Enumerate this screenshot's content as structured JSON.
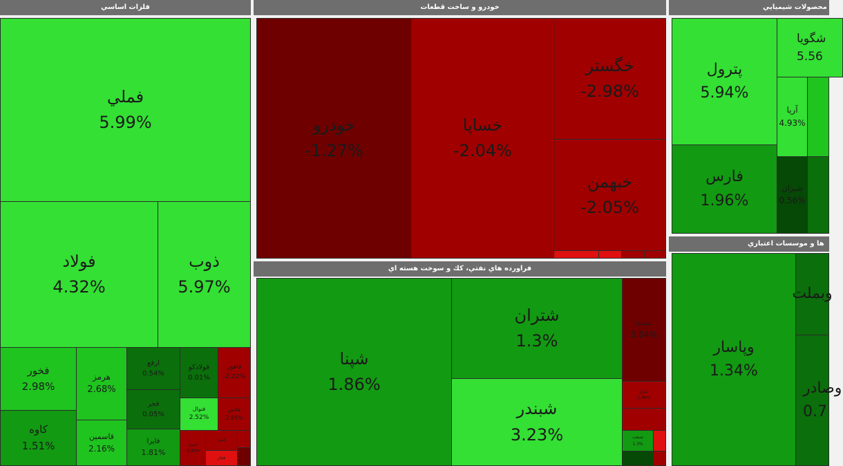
{
  "colors": {
    "bright_green": "#33e033",
    "green": "#1fc41f",
    "mid_green": "#129a12",
    "dark_green": "#0b6f0b",
    "darkest_green": "#064806",
    "dark_red": "#6f0000",
    "red": "#a10000",
    "bright_red": "#e01010",
    "header_gray": "#6e6e6e"
  },
  "panels": {
    "metals": "فلزات اساسي",
    "auto": "خودرو و ساخت قطعات",
    "refinery": "فراورده هاي نفتي، كك و سوخت هسته اي",
    "chem": "محصولات شيميايي",
    "banks": "ها و موسسات اعتباري"
  },
  "tiles": {
    "fameli": {
      "name": "فملي",
      "pct": "5.99%"
    },
    "foolad": {
      "name": "فولاد",
      "pct": "4.32%"
    },
    "zob": {
      "name": "ذوب",
      "pct": "5.97%"
    },
    "fakhoor": {
      "name": "فخور",
      "pct": "2.98%"
    },
    "kaveh": {
      "name": "كاوه",
      "pct": "1.51%"
    },
    "hormoz": {
      "name": "هرمز",
      "pct": "2.68%"
    },
    "ghasemin": {
      "name": "قاسمين",
      "pct": "2.16%"
    },
    "arfa": {
      "name": "ارفع",
      "pct": "0.54%"
    },
    "fejar": {
      "name": "فجر",
      "pct": "0.05%"
    },
    "fayra": {
      "name": "فايرا",
      "pct": "1.81%"
    },
    "faladko": {
      "name": "فولادكو",
      "pct": "0.01%"
    },
    "fnval": {
      "name": "فنوال",
      "pct": "2.52%"
    },
    "falhavi": {
      "name": "فاهور",
      "pct": "-2.22%"
    },
    "fanpars": {
      "name": "فلاس",
      "pct": "2.95%"
    },
    "fasepahan": {
      "name": "فسپا",
      "pct": "-0.40%"
    },
    "fmeta": {
      "name": "فمرا",
      "pct": ""
    },
    "fkhaz": {
      "name": "فخاز",
      "pct": ""
    },
    "khodro": {
      "name": "خودرو",
      "pct": "-1.27%"
    },
    "khsapa": {
      "name": "خساپا",
      "pct": "-2.04%"
    },
    "khgostar": {
      "name": "خگستر",
      "pct": "-2.98%"
    },
    "khbahman": {
      "name": "خبهمن",
      "pct": "-2.05%"
    },
    "shepna": {
      "name": "شپنا",
      "pct": "1.86%"
    },
    "shetran": {
      "name": "شتران",
      "pct": "1.3%"
    },
    "shbandar": {
      "name": "شبندر",
      "pct": "3.23%"
    },
    "shesfa": {
      "name": "شسپا",
      "pct": "0.04%"
    },
    "shraz": {
      "name": "شراز",
      "pct": "1.48%"
    },
    "shnaft": {
      "name": "شنفت",
      "pct": "1.3%"
    },
    "petrol": {
      "name": "پترول",
      "pct": "5.94%"
    },
    "fars": {
      "name": "فارس",
      "pct": "1.96%"
    },
    "shegoya": {
      "name": "شگويا",
      "pct": "5.56"
    },
    "aria": {
      "name": "آريا",
      "pct": "4.93%"
    },
    "shiran": {
      "name": "شيران",
      "pct": "0.56%"
    },
    "vpasar": {
      "name": "وپاسار",
      "pct": "1.34%"
    },
    "vbmellat": {
      "name": "وبملت",
      "pct": ""
    },
    "vsadr": {
      "name": "وصادر",
      "pct": "0.7"
    }
  }
}
